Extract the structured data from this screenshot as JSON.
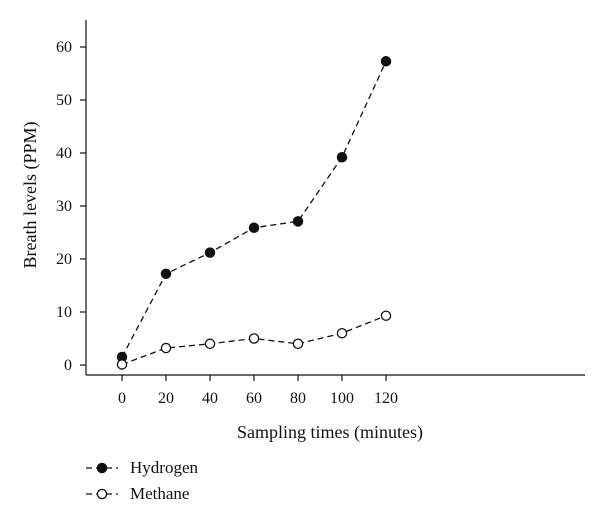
{
  "chart_data": {
    "type": "line",
    "xlabel": "Sampling times (minutes)",
    "ylabel": "Breath levels (PPM)",
    "x": [
      0,
      20,
      40,
      60,
      80,
      100,
      120
    ],
    "xlim": [
      -8,
      128
    ],
    "ylim": [
      -2,
      64
    ],
    "xticks": [
      "0",
      "20",
      "40",
      "60",
      "80",
      "100",
      "120"
    ],
    "yticks": [
      "0",
      "10",
      "20",
      "30",
      "40",
      "50",
      "60"
    ],
    "grid": false,
    "legend_position": "bottom-left",
    "series": [
      {
        "name": "Hydrogen",
        "marker": "filled-circle",
        "line_style": "dashed",
        "color": "#111111",
        "values": [
          1.5,
          17.2,
          21.2,
          25.9,
          27.1,
          39.2,
          57.3
        ]
      },
      {
        "name": "Methane",
        "marker": "open-circle",
        "line_style": "dashed",
        "color": "#111111",
        "values": [
          0.1,
          3.2,
          4.0,
          5.0,
          4.0,
          6.0,
          9.3
        ]
      }
    ]
  }
}
